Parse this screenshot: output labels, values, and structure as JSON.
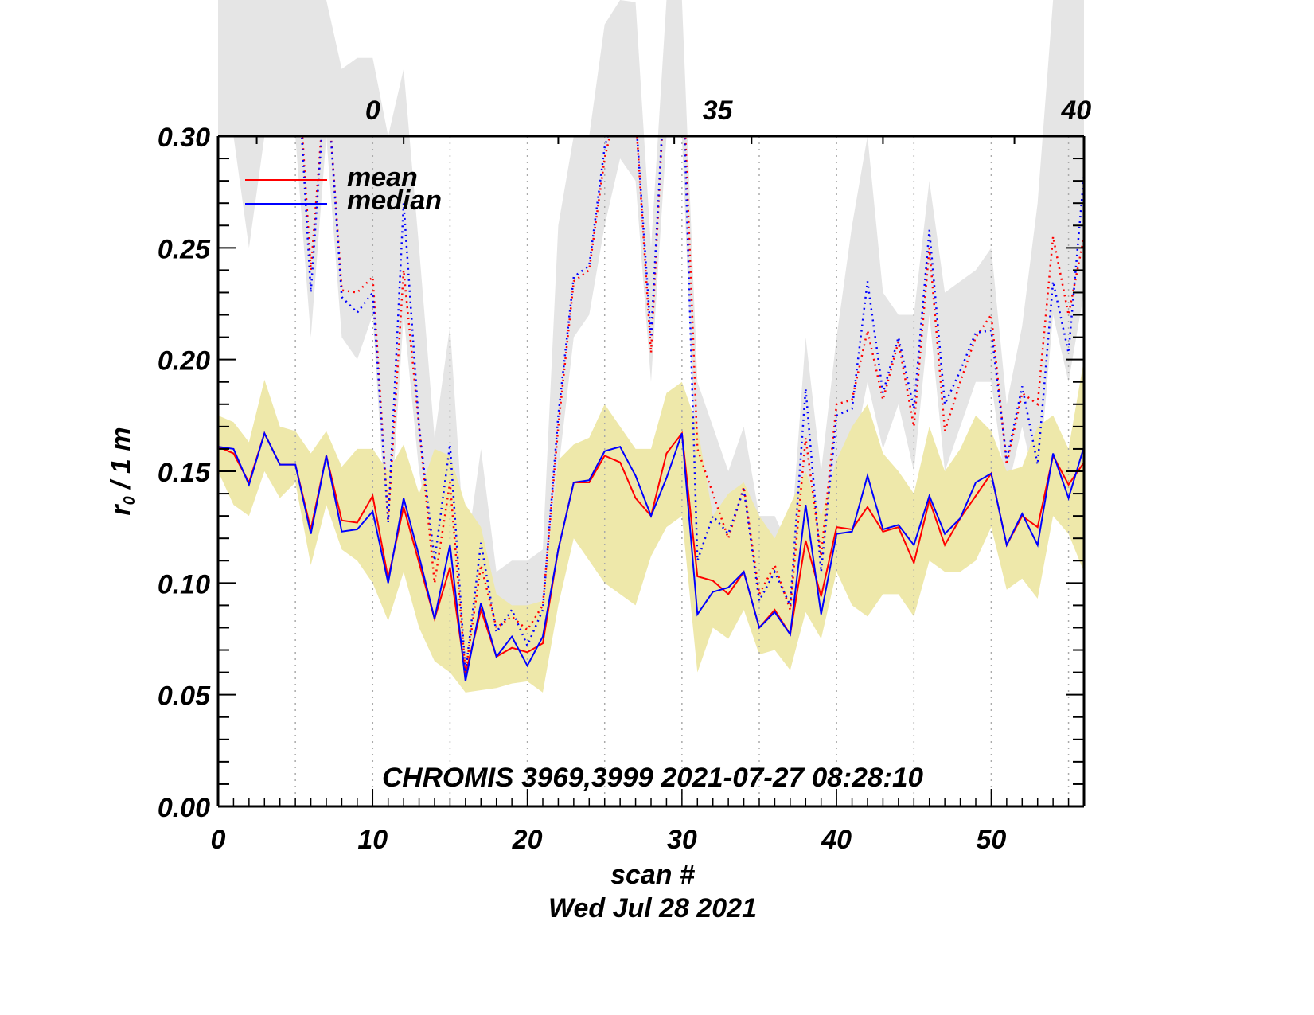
{
  "chart_data": {
    "type": "line",
    "title": "",
    "annotation": "CHROMIS 3969,3999 2021-07-27 08:28:10",
    "xlabel": "scan #",
    "xlabel2": "Wed Jul 28 2021",
    "ylabel_main": "r",
    "ylabel_sub": "0",
    "ylabel_rest": " / 1 m",
    "xlim": [
      0,
      56
    ],
    "ylim": [
      0.0,
      0.3
    ],
    "x_ticks": [
      0,
      10,
      20,
      30,
      40,
      50
    ],
    "x_tick_labels": [
      "0",
      "10",
      "20",
      "30",
      "40",
      "50"
    ],
    "y_ticks": [
      0.0,
      0.05,
      0.1,
      0.15,
      0.2,
      0.25,
      0.3
    ],
    "y_tick_labels": [
      "0.00",
      "0.05",
      "0.10",
      "0.15",
      "0.20",
      "0.25",
      "0.30"
    ],
    "top_axis_labels": [
      {
        "x": 10,
        "text": "0"
      },
      {
        "x": 32.3,
        "text": "35"
      },
      {
        "x": 55.5,
        "text": "40"
      }
    ],
    "vertical_gridlines_x": [
      5,
      10,
      15,
      20,
      25,
      30,
      35,
      40,
      45,
      50,
      55
    ],
    "grid": "vertical dotted",
    "legend": {
      "position": "top-left",
      "entries": [
        {
          "label": "mean",
          "color": "#ff0000"
        },
        {
          "label": "median",
          "color": "#0000ff"
        }
      ]
    },
    "colors": {
      "mean": "#ff0000",
      "median": "#0000ff",
      "band_lower": "#eee8aa",
      "band_upper": "#e5e5e5",
      "grid": "#aaaaaa"
    },
    "x": [
      0,
      1,
      2,
      3,
      4,
      5,
      6,
      7,
      8,
      9,
      10,
      11,
      12,
      13,
      14,
      15,
      16,
      17,
      18,
      19,
      20,
      21,
      22,
      23,
      24,
      25,
      26,
      27,
      28,
      29,
      30,
      31,
      32,
      33,
      34,
      35,
      36,
      37,
      38,
      39,
      40,
      41,
      42,
      43,
      44,
      45,
      46,
      47,
      48,
      49,
      50,
      51,
      52,
      53,
      54,
      55,
      56
    ],
    "series": [
      {
        "name": "mean",
        "style": "solid",
        "color": "#ff0000",
        "values": [
          0.161,
          0.158,
          0.145,
          0.167,
          0.153,
          0.153,
          0.124,
          0.157,
          0.128,
          0.127,
          0.139,
          0.102,
          0.134,
          0.109,
          0.084,
          0.107,
          0.059,
          0.088,
          0.067,
          0.071,
          0.069,
          0.073,
          0.115,
          0.145,
          0.145,
          0.157,
          0.154,
          0.138,
          0.13,
          0.158,
          0.167,
          0.103,
          0.101,
          0.095,
          0.105,
          0.08,
          0.088,
          0.077,
          0.119,
          0.094,
          0.125,
          0.124,
          0.134,
          0.123,
          0.125,
          0.109,
          0.137,
          0.117,
          0.129,
          0.139,
          0.149,
          0.117,
          0.13,
          0.125,
          0.157,
          0.144,
          0.154
        ]
      },
      {
        "name": "median",
        "style": "solid",
        "color": "#0000ff",
        "values": [
          0.161,
          0.16,
          0.144,
          0.167,
          0.153,
          0.153,
          0.122,
          0.157,
          0.123,
          0.124,
          0.132,
          0.1,
          0.138,
          0.112,
          0.084,
          0.117,
          0.056,
          0.091,
          0.067,
          0.076,
          0.063,
          0.076,
          0.115,
          0.145,
          0.146,
          0.159,
          0.161,
          0.148,
          0.13,
          0.147,
          0.167,
          0.086,
          0.096,
          0.098,
          0.105,
          0.08,
          0.087,
          0.077,
          0.135,
          0.086,
          0.122,
          0.123,
          0.148,
          0.124,
          0.126,
          0.117,
          0.139,
          0.122,
          0.129,
          0.145,
          0.149,
          0.117,
          0.131,
          0.117,
          0.158,
          0.138,
          0.161
        ]
      },
      {
        "name": "mean (upper)",
        "style": "dotted",
        "color": "#ff0000",
        "values": [
          0.33,
          0.36,
          0.4,
          0.42,
          0.38,
          0.35,
          0.24,
          0.33,
          0.231,
          0.23,
          0.237,
          0.128,
          0.24,
          0.17,
          0.1,
          0.145,
          0.06,
          0.108,
          0.08,
          0.085,
          0.079,
          0.09,
          0.17,
          0.235,
          0.24,
          0.29,
          0.32,
          0.31,
          0.203,
          0.34,
          0.34,
          0.16,
          0.14,
          0.12,
          0.143,
          0.095,
          0.108,
          0.088,
          0.165,
          0.112,
          0.18,
          0.182,
          0.213,
          0.182,
          0.208,
          0.17,
          0.25,
          0.168,
          0.19,
          0.21,
          0.22,
          0.153,
          0.185,
          0.18,
          0.255,
          0.22,
          0.255
        ]
      },
      {
        "name": "median (upper)",
        "style": "dotted",
        "color": "#0000ff",
        "values": [
          0.33,
          0.3,
          0.4,
          0.42,
          0.38,
          0.35,
          0.23,
          0.33,
          0.228,
          0.221,
          0.23,
          0.127,
          0.27,
          0.17,
          0.11,
          0.162,
          0.06,
          0.118,
          0.078,
          0.088,
          0.072,
          0.088,
          0.175,
          0.237,
          0.242,
          0.295,
          0.32,
          0.31,
          0.21,
          0.34,
          0.34,
          0.11,
          0.13,
          0.122,
          0.142,
          0.092,
          0.105,
          0.09,
          0.187,
          0.105,
          0.175,
          0.178,
          0.235,
          0.185,
          0.21,
          0.178,
          0.258,
          0.18,
          0.195,
          0.212,
          0.213,
          0.155,
          0.188,
          0.153,
          0.235,
          0.203,
          0.283
        ]
      }
    ],
    "bands": [
      {
        "name": "lower spread",
        "color": "#eee8aa",
        "low": [
          0.15,
          0.135,
          0.13,
          0.15,
          0.138,
          0.145,
          0.108,
          0.135,
          0.115,
          0.11,
          0.1,
          0.083,
          0.105,
          0.08,
          0.065,
          0.06,
          0.051,
          0.052,
          0.053,
          0.055,
          0.056,
          0.051,
          0.09,
          0.12,
          0.11,
          0.1,
          0.095,
          0.09,
          0.112,
          0.125,
          0.13,
          0.06,
          0.08,
          0.075,
          0.088,
          0.068,
          0.07,
          0.061,
          0.087,
          0.075,
          0.105,
          0.09,
          0.085,
          0.095,
          0.095,
          0.085,
          0.11,
          0.105,
          0.105,
          0.11,
          0.125,
          0.097,
          0.102,
          0.093,
          0.13,
          0.122,
          0.105
        ],
        "high": [
          0.175,
          0.172,
          0.163,
          0.191,
          0.17,
          0.168,
          0.158,
          0.168,
          0.152,
          0.16,
          0.16,
          0.15,
          0.162,
          0.14,
          0.16,
          0.157,
          0.135,
          0.125,
          0.095,
          0.09,
          0.09,
          0.092,
          0.155,
          0.162,
          0.165,
          0.18,
          0.17,
          0.16,
          0.16,
          0.185,
          0.19,
          0.17,
          0.13,
          0.14,
          0.145,
          0.13,
          0.12,
          0.135,
          0.15,
          0.13,
          0.155,
          0.17,
          0.18,
          0.158,
          0.15,
          0.14,
          0.17,
          0.15,
          0.16,
          0.175,
          0.168,
          0.15,
          0.152,
          0.17,
          0.175,
          0.16,
          0.2
        ]
      },
      {
        "name": "upper spread",
        "color": "#e5e5e5",
        "low": [
          0.3,
          0.3,
          0.25,
          0.3,
          0.3,
          0.3,
          0.21,
          0.3,
          0.21,
          0.2,
          0.22,
          0.11,
          0.22,
          0.15,
          0.11,
          0.12,
          0.06,
          0.095,
          0.07,
          0.075,
          0.07,
          0.08,
          0.15,
          0.21,
          0.22,
          0.26,
          0.29,
          0.28,
          0.19,
          0.3,
          0.3,
          0.13,
          0.12,
          0.1,
          0.12,
          0.085,
          0.095,
          0.08,
          0.14,
          0.1,
          0.15,
          0.155,
          0.19,
          0.16,
          0.18,
          0.15,
          0.22,
          0.15,
          0.17,
          0.19,
          0.19,
          0.14,
          0.17,
          0.14,
          0.22,
          0.19,
          0.23
        ],
        "high": [
          0.45,
          0.45,
          0.45,
          0.45,
          0.45,
          0.45,
          0.4,
          0.45,
          0.33,
          0.335,
          0.335,
          0.3,
          0.33,
          0.25,
          0.165,
          0.215,
          0.11,
          0.16,
          0.105,
          0.11,
          0.11,
          0.115,
          0.26,
          0.3,
          0.3,
          0.35,
          0.38,
          0.36,
          0.25,
          0.38,
          0.38,
          0.19,
          0.17,
          0.15,
          0.17,
          0.13,
          0.13,
          0.115,
          0.21,
          0.15,
          0.21,
          0.26,
          0.3,
          0.23,
          0.22,
          0.22,
          0.28,
          0.23,
          0.235,
          0.24,
          0.25,
          0.18,
          0.215,
          0.27,
          0.45,
          0.45,
          0.45
        ]
      }
    ]
  }
}
